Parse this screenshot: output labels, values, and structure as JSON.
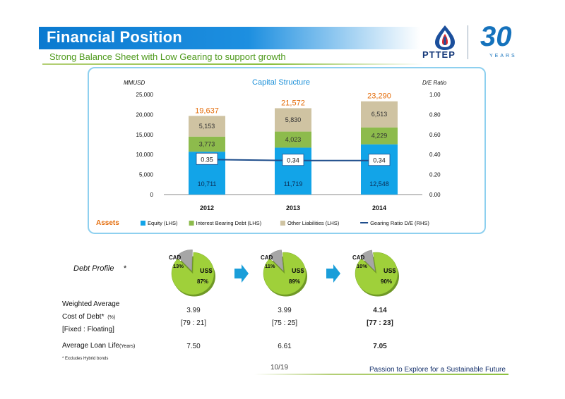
{
  "header": {
    "title": "Financial Position",
    "subtitle": "Strong Balance Sheet with Low Gearing to support growth",
    "brand": "PTTEP",
    "years_number": "30",
    "years_label": "YEARS"
  },
  "chart_data": {
    "type": "bar",
    "title": "Capital Structure",
    "ylabel": "MMUSD",
    "y2label": "D/E Ratio",
    "categories": [
      "2012",
      "2013",
      "2014"
    ],
    "ylim": [
      0,
      25000
    ],
    "y_ticks": [
      "0",
      "5,000",
      "10,000",
      "15,000",
      "20,000",
      "25,000"
    ],
    "y2lim": [
      0,
      1.0
    ],
    "y2_ticks": [
      "0.00",
      "0.20",
      "0.40",
      "0.60",
      "0.80",
      "1.00"
    ],
    "stacked": true,
    "series": [
      {
        "name": "Equity (LHS)",
        "values": [
          10711,
          11719,
          12548
        ],
        "labels": [
          "10,711",
          "11,719",
          "12,548"
        ],
        "color": "#12a4e8"
      },
      {
        "name": "Interest Bearing Debt (LHS)",
        "values": [
          3773,
          4023,
          4229
        ],
        "labels": [
          "3,773",
          "4,023",
          "4,229"
        ],
        "color": "#8dbb4c"
      },
      {
        "name": "Other Liabilities (LHS)",
        "values": [
          5153,
          5830,
          6513
        ],
        "labels": [
          "5,153",
          "5,830",
          "6,513"
        ],
        "color": "#cfc3a2"
      }
    ],
    "totals": [
      "19,637",
      "21,572",
      "23,290"
    ],
    "totals_color": "#e46c0a",
    "line": {
      "name": "Gearing Ratio D/E (RHS)",
      "values": [
        0.35,
        0.34,
        0.34
      ],
      "labels": [
        "0.35",
        "0.34",
        "0.34"
      ],
      "color": "#1f4e8c"
    },
    "legend_title": "Assets",
    "legend_position": "bottom",
    "grid": false
  },
  "debt_profile": {
    "label": "Debt Profile",
    "asterisk": "*",
    "pies": [
      {
        "usd_pct": 87,
        "cad_pct": 13,
        "usd_label": "US$",
        "usd_value": "87%",
        "cad_label": "CAD",
        "cad_value": "13%"
      },
      {
        "usd_pct": 89,
        "cad_pct": 11,
        "usd_label": "US$",
        "usd_value": "89%",
        "cad_label": "CAD",
        "cad_value": "11%"
      },
      {
        "usd_pct": 90,
        "cad_pct": 10,
        "usd_label": "US$",
        "usd_value": "90%",
        "cad_label": "CAD",
        "cad_value": "10%"
      }
    ],
    "colors": {
      "usd": "#9fd03a",
      "cad": "#a6a6a6",
      "arrow": "#1a9ed9"
    }
  },
  "metrics": {
    "wacd_line1": "Weighted Average",
    "wacd_line2": "Cost of Debt*",
    "wacd_unit": "(%)",
    "fixed_label": "[Fixed : Floating]",
    "loan_life_label": "Average Loan Life",
    "loan_life_unit": "(Years)",
    "wacd": [
      "3.99",
      "3.99",
      "4.14"
    ],
    "fixed_floating": [
      "[79 : 21]",
      "[75 : 25]",
      "[77 : 23]"
    ],
    "loan_life": [
      "7.50",
      "6.61",
      "7.05"
    ]
  },
  "footer": {
    "footnote": "* Excludes Hybrid bonds",
    "page": "10/19",
    "slogan": "Passion to Explore for a Sustainable Future"
  }
}
